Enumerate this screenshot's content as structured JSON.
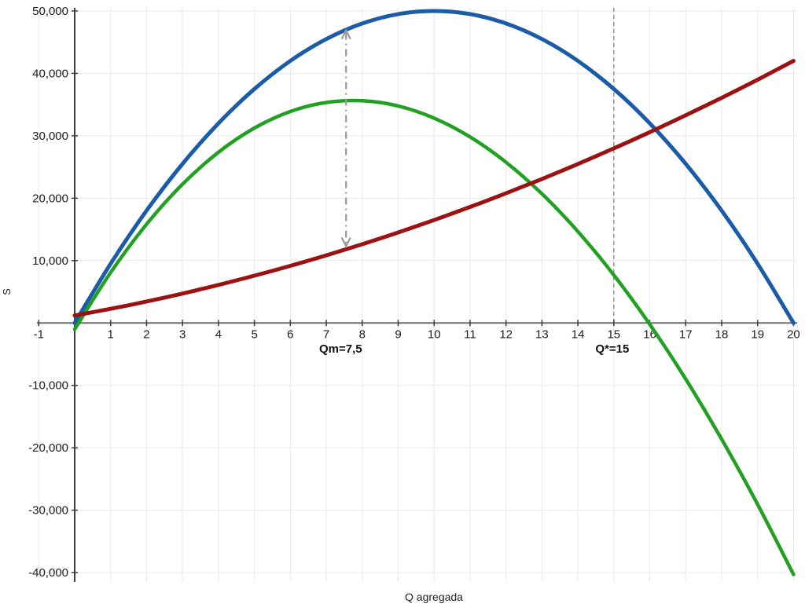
{
  "chart_data": {
    "type": "line",
    "title": "",
    "xlabel": "Q agregada",
    "ylabel": "S",
    "xlim": [
      -1.05,
      20.1
    ],
    "ylim": [
      -41500,
      50500
    ],
    "grid": true,
    "background": "#ffffff",
    "grid_color": "#e9e9e9",
    "x_axis_color": "#6e6e6e",
    "y_axis_color": "#3c3c3c",
    "x_ticks": [
      {
        "v": -1,
        "label": "-1"
      },
      {
        "v": 1,
        "label": "1"
      },
      {
        "v": 2,
        "label": "2"
      },
      {
        "v": 3,
        "label": "3"
      },
      {
        "v": 4,
        "label": "4"
      },
      {
        "v": 5,
        "label": "5"
      },
      {
        "v": 6,
        "label": "6"
      },
      {
        "v": 7,
        "label": "7"
      },
      {
        "v": 8,
        "label": "8"
      },
      {
        "v": 9,
        "label": "9"
      },
      {
        "v": 10,
        "label": "10"
      },
      {
        "v": 11,
        "label": "11"
      },
      {
        "v": 12,
        "label": "12"
      },
      {
        "v": 13,
        "label": "13"
      },
      {
        "v": 14,
        "label": "14"
      },
      {
        "v": 15,
        "label": "15"
      },
      {
        "v": 16,
        "label": "16"
      },
      {
        "v": 17,
        "label": "17"
      },
      {
        "v": 18,
        "label": "18"
      },
      {
        "v": 19,
        "label": "19"
      },
      {
        "v": 20,
        "label": "20"
      }
    ],
    "y_ticks": [
      {
        "v": 50000,
        "label": "50,000"
      },
      {
        "v": 40000,
        "label": "40,000"
      },
      {
        "v": 30000,
        "label": "30,000"
      },
      {
        "v": 20000,
        "label": "20,000"
      },
      {
        "v": 10000,
        "label": "10,000"
      },
      {
        "v": -10000,
        "label": "-10,000"
      },
      {
        "v": -20000,
        "label": "-20,000"
      },
      {
        "v": -30000,
        "label": "-30,000"
      },
      {
        "v": -40000,
        "label": "-40,000"
      }
    ],
    "x": [
      0,
      1,
      2,
      3,
      4,
      5,
      6,
      7,
      8,
      9,
      10,
      11,
      12,
      13,
      14,
      15,
      16,
      17,
      18,
      19,
      20
    ],
    "series": [
      {
        "name": "blue-curve",
        "color": "#1a5ca8",
        "width": 5,
        "values": [
          0,
          9500,
          18000,
          25500,
          32000,
          37500,
          42000,
          45500,
          48000,
          49500,
          50000,
          49500,
          48000,
          45500,
          42000,
          37500,
          32000,
          25500,
          18000,
          9500,
          0
        ]
      },
      {
        "name": "green-curve",
        "color": "#22a022",
        "width": 4.5,
        "values": [
          -1000,
          8090,
          15825,
          22240,
          27370,
          31240,
          33890,
          35340,
          35620,
          34780,
          32830,
          29820,
          25760,
          20700,
          14660,
          7680,
          -220,
          -8990,
          -18630,
          -29070,
          -40300
        ]
      },
      {
        "name": "red-curve",
        "color": "#9c1111",
        "width": 5,
        "values": [
          1200,
          2270,
          3440,
          4720,
          6100,
          7580,
          9160,
          10840,
          12620,
          14510,
          16500,
          18590,
          20780,
          23080,
          25480,
          27980,
          30580,
          33280,
          36080,
          38990,
          42000
        ]
      }
    ],
    "annotations": {
      "qm_label": "Qm=7,5",
      "qm_x": 7.4,
      "qstar_label": "Q*=15",
      "qstar_x": 15.0,
      "vline": {
        "x": 15,
        "color": "#999999",
        "style": "dashed"
      },
      "arrow": {
        "x": 7.55,
        "y_from": 12300,
        "y_to": 46900,
        "color": "#9a9a9a",
        "style": "dash-dot"
      }
    }
  }
}
